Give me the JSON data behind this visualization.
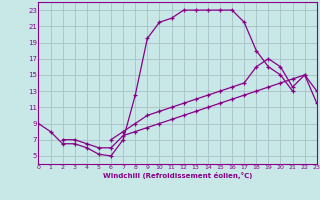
{
  "xlabel": "Windchill (Refroidissement éolien,°C)",
  "bg_color": "#c8e8e8",
  "grid_color": "#a0b8c0",
  "line_color": "#880088",
  "xlim": [
    0,
    23
  ],
  "ylim": [
    4,
    24
  ],
  "xticks": [
    0,
    1,
    2,
    3,
    4,
    5,
    6,
    7,
    8,
    9,
    10,
    11,
    12,
    13,
    14,
    15,
    16,
    17,
    18,
    19,
    20,
    21,
    22,
    23
  ],
  "yticks": [
    5,
    7,
    9,
    11,
    13,
    15,
    17,
    19,
    21,
    23
  ],
  "line1_x": [
    0,
    1,
    2,
    3,
    4,
    5,
    6,
    7,
    8,
    9,
    10,
    11,
    12,
    13,
    14,
    15,
    16,
    17,
    18,
    19,
    20,
    21
  ],
  "line1_y": [
    9,
    8,
    6.5,
    6.5,
    6,
    5.2,
    5,
    7,
    12.5,
    19.5,
    21.5,
    22,
    23,
    23,
    23,
    23,
    23,
    21.5,
    18,
    16,
    15,
    13
  ],
  "line2_x": [
    2,
    3,
    4,
    5,
    6,
    7,
    8,
    9,
    10,
    11,
    12,
    13,
    14,
    15,
    16,
    17,
    18,
    19,
    20,
    21,
    22,
    23
  ],
  "line2_y": [
    7,
    7,
    6.5,
    6,
    6,
    7.5,
    8,
    8.5,
    9,
    9.5,
    10,
    10.5,
    11,
    11.5,
    12,
    12.5,
    13,
    13.5,
    14,
    14.5,
    15,
    11.5
  ],
  "line3_x": [
    6,
    7,
    8,
    9,
    10,
    11,
    12,
    13,
    14,
    15,
    16,
    17,
    18,
    19,
    20,
    21,
    22,
    23
  ],
  "line3_y": [
    7,
    8,
    9,
    10,
    10.5,
    11,
    11.5,
    12,
    12.5,
    13,
    13.5,
    14,
    16,
    17,
    16,
    13.5,
    15,
    13
  ]
}
